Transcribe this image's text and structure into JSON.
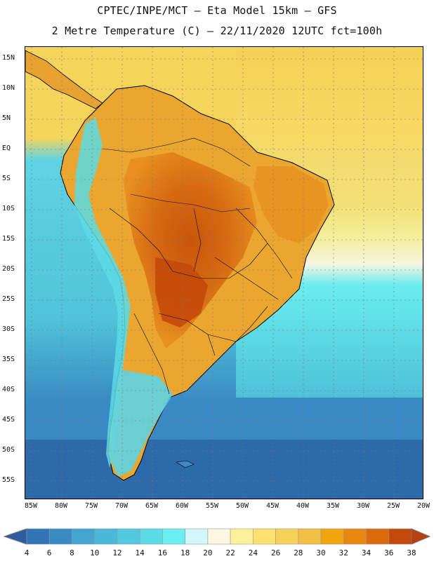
{
  "header": {
    "line1": "CPTEC/INPE/MCT –  Eta Model 15km – GFS",
    "line2": "2 Metre Temperature (C) – 22/11/2020 12UTC fct=100h"
  },
  "map": {
    "region": "South America",
    "lat_labels": [
      "15N",
      "10N",
      "5N",
      "EQ",
      "5S",
      "10S",
      "15S",
      "20S",
      "25S",
      "30S",
      "35S",
      "40S",
      "45S",
      "50S",
      "55S"
    ],
    "lon_labels": [
      "85W",
      "80W",
      "75W",
      "70W",
      "65W",
      "60W",
      "55W",
      "50W",
      "45W",
      "40W",
      "35W",
      "30W",
      "25W",
      "20W"
    ],
    "colors": {
      "ocean_cold": "#2e6aa9",
      "ocean_cool": "#3a8bc4",
      "ocean_mid": "#4fc3d9",
      "ocean_warm": "#5fd3e3",
      "ocean_tropic": "#f5d45c",
      "land_hot": "#c8560a",
      "land_warm": "#e08a1e",
      "land_mild": "#f2b33c",
      "border": "#000000"
    }
  },
  "legend": {
    "labels": [
      "4",
      "6",
      "8",
      "10",
      "12",
      "14",
      "16",
      "18",
      "20",
      "22",
      "24",
      "26",
      "28",
      "30",
      "32",
      "34",
      "36",
      "38"
    ],
    "colors": [
      "#2c5da3",
      "#3274b5",
      "#3a8bc4",
      "#43a6d1",
      "#4ab8d9",
      "#52c8de",
      "#5adbe5",
      "#6aeef0",
      "#d2f6fa",
      "#fdf7e2",
      "#fdf09a",
      "#fae170",
      "#f5d15a",
      "#f0bf43",
      "#f0a50f",
      "#e8870f",
      "#dc6a0c",
      "#c4490a",
      "#b8400c"
    ]
  }
}
